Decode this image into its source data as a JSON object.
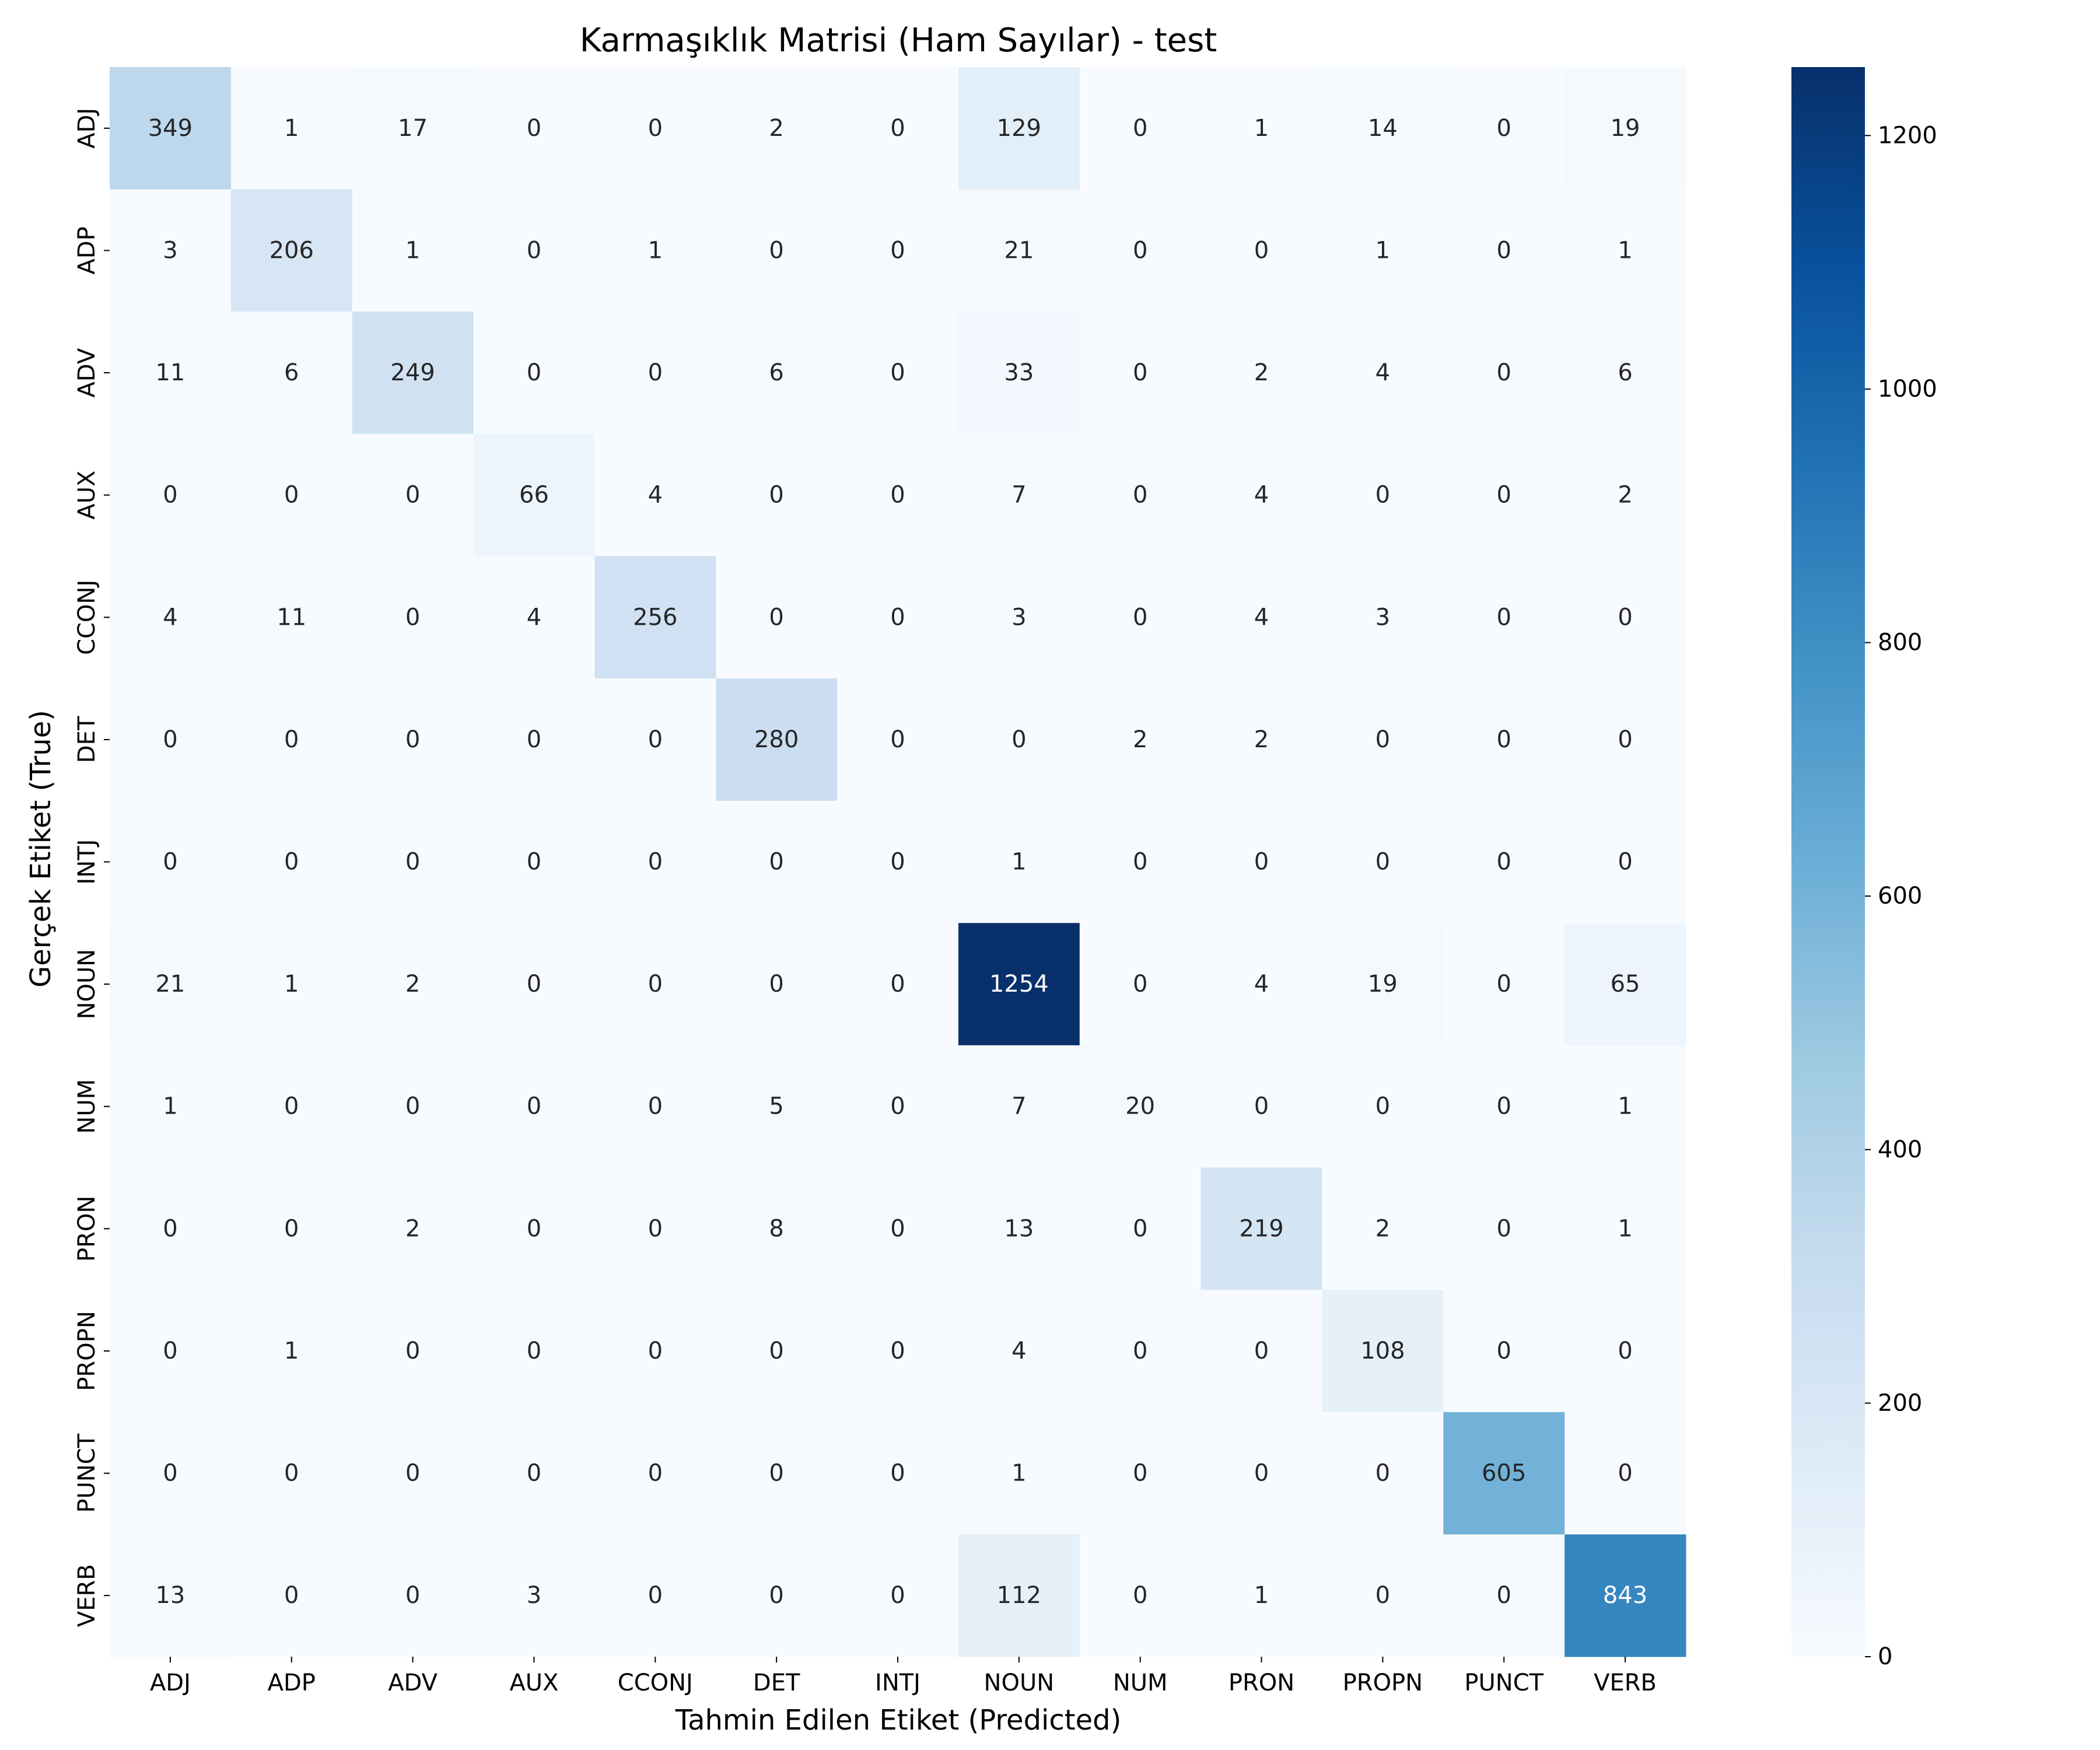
{
  "chart_data": {
    "type": "heatmap",
    "title": "Karmaşıklık Matrisi (Ham Sayılar) - test",
    "xlabel": "Tahmin Edilen Etiket (Predicted)",
    "ylabel": "Gerçek Etiket (True)",
    "x_labels": [
      "ADJ",
      "ADP",
      "ADV",
      "AUX",
      "CCONJ",
      "DET",
      "INTJ",
      "NOUN",
      "NUM",
      "PRON",
      "PROPN",
      "PUNCT",
      "VERB"
    ],
    "y_labels": [
      "ADJ",
      "ADP",
      "ADV",
      "AUX",
      "CCONJ",
      "DET",
      "INTJ",
      "NOUN",
      "NUM",
      "PRON",
      "PROPN",
      "PUNCT",
      "VERB"
    ],
    "values": [
      [
        349,
        1,
        17,
        0,
        0,
        2,
        0,
        129,
        0,
        1,
        14,
        0,
        19
      ],
      [
        3,
        206,
        1,
        0,
        1,
        0,
        0,
        21,
        0,
        0,
        1,
        0,
        1
      ],
      [
        11,
        6,
        249,
        0,
        0,
        6,
        0,
        33,
        0,
        2,
        4,
        0,
        6
      ],
      [
        0,
        0,
        0,
        66,
        4,
        0,
        0,
        7,
        0,
        4,
        0,
        0,
        2
      ],
      [
        4,
        11,
        0,
        4,
        256,
        0,
        0,
        3,
        0,
        4,
        3,
        0,
        0
      ],
      [
        0,
        0,
        0,
        0,
        0,
        280,
        0,
        0,
        2,
        2,
        0,
        0,
        0
      ],
      [
        0,
        0,
        0,
        0,
        0,
        0,
        0,
        1,
        0,
        0,
        0,
        0,
        0
      ],
      [
        21,
        1,
        2,
        0,
        0,
        0,
        0,
        1254,
        0,
        4,
        19,
        0,
        65
      ],
      [
        1,
        0,
        0,
        0,
        0,
        5,
        0,
        7,
        20,
        0,
        0,
        0,
        1
      ],
      [
        0,
        0,
        2,
        0,
        0,
        8,
        0,
        13,
        0,
        219,
        2,
        0,
        1
      ],
      [
        0,
        1,
        0,
        0,
        0,
        0,
        0,
        4,
        0,
        0,
        108,
        0,
        0
      ],
      [
        0,
        0,
        0,
        0,
        0,
        0,
        0,
        1,
        0,
        0,
        0,
        605,
        0
      ],
      [
        13,
        0,
        0,
        3,
        0,
        0,
        0,
        112,
        0,
        1,
        0,
        0,
        843
      ]
    ],
    "colormap": "Blues",
    "vmin": 0,
    "vmax": 1254,
    "colorbar_ticks": [
      0,
      200,
      400,
      600,
      800,
      1000,
      1200
    ],
    "colorbar_tick_labels": [
      "0",
      "200",
      "400",
      "600",
      "800",
      "1000",
      "1200"
    ],
    "legend_position": "right"
  }
}
